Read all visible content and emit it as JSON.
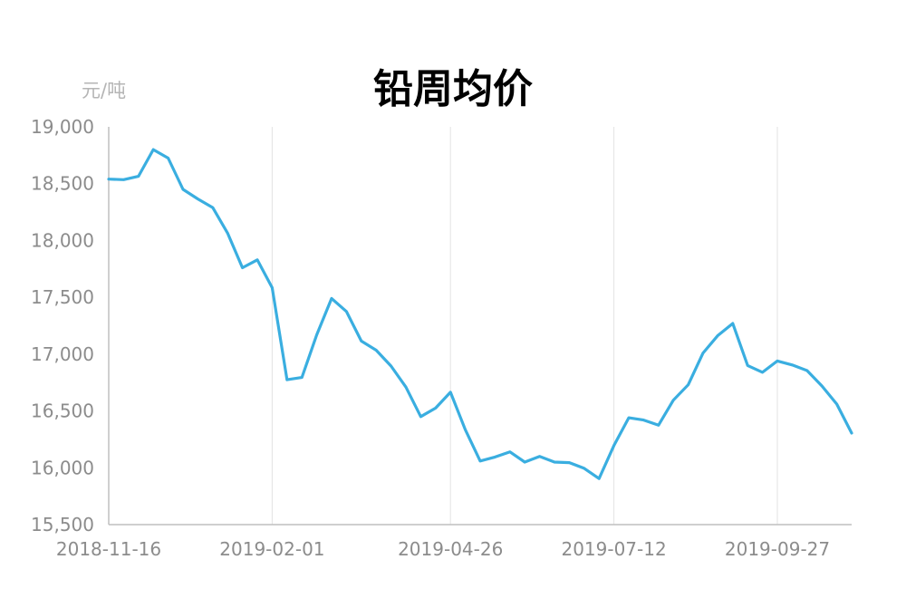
{
  "chart_data": {
    "type": "line",
    "title": "铅周均价",
    "ylabel": "元/吨",
    "xlabel": "",
    "ylim": [
      15500,
      19000
    ],
    "yticks": [
      "19,000",
      "18,500",
      "18,000",
      "17,500",
      "17,000",
      "16,500",
      "16,000",
      "15,500"
    ],
    "ytick_values": [
      19000,
      18500,
      18000,
      17500,
      17000,
      16500,
      16000,
      15500
    ],
    "x_tick_labels": [
      "2018-11-16",
      "2019-02-01",
      "2019-04-26",
      "2019-07-12",
      "2019-09-27"
    ],
    "x_tick_index": [
      0,
      11,
      23,
      34,
      45
    ],
    "grid": "vertical",
    "color": "#3aaee0",
    "series": [
      {
        "values": [
          18540,
          18535,
          18565,
          18800,
          18725,
          18450,
          18365,
          18290,
          18065,
          17760,
          17830,
          17585,
          16775,
          16795,
          17170,
          17490,
          17375,
          17115,
          17035,
          16895,
          16710,
          16450,
          16525,
          16665,
          16335,
          16060,
          16095,
          16140,
          16050,
          16100,
          16050,
          16045,
          15995,
          15905,
          16195,
          16440,
          16420,
          16375,
          16595,
          16730,
          17010,
          17165,
          17270,
          16900,
          16840,
          16940,
          16905,
          16855,
          16720,
          16560,
          16305
        ]
      }
    ]
  }
}
